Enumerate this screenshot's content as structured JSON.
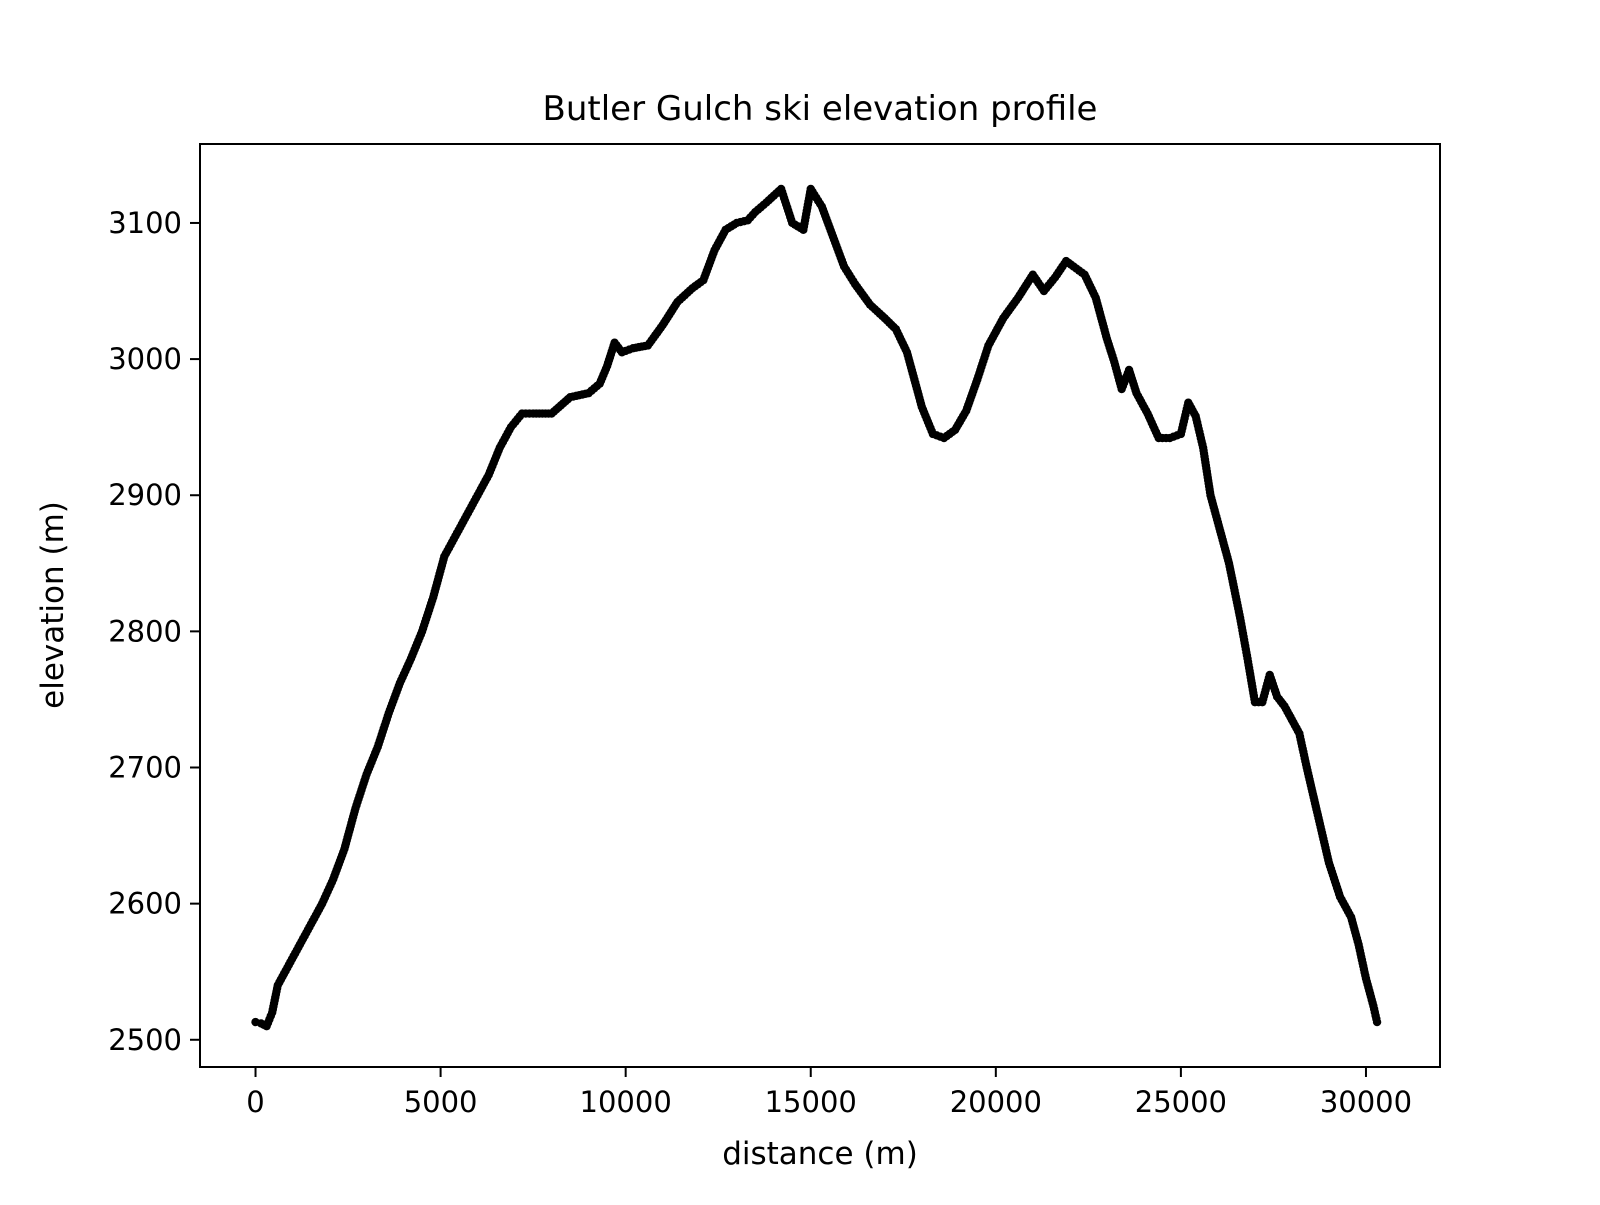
{
  "chart_data": {
    "type": "scatter",
    "title": "Butler Gulch ski elevation profile",
    "xlabel": "distance (m)",
    "ylabel": "elevation (m)",
    "xlim": [
      -1500,
      32000
    ],
    "ylim": [
      2480,
      3158
    ],
    "xticks": [
      0,
      5000,
      10000,
      15000,
      20000,
      25000,
      30000
    ],
    "yticks": [
      2500,
      2600,
      2700,
      2800,
      2900,
      3000,
      3100
    ],
    "grid": false,
    "legend": "none",
    "marker_color": "#000000",
    "series": [
      {
        "points": [
          [
            0,
            2513
          ],
          [
            150,
            2512
          ],
          [
            300,
            2510
          ],
          [
            450,
            2520
          ],
          [
            600,
            2540
          ],
          [
            900,
            2555
          ],
          [
            1200,
            2570
          ],
          [
            1500,
            2585
          ],
          [
            1800,
            2600
          ],
          [
            2100,
            2618
          ],
          [
            2400,
            2640
          ],
          [
            2700,
            2670
          ],
          [
            3000,
            2695
          ],
          [
            3300,
            2715
          ],
          [
            3600,
            2740
          ],
          [
            3900,
            2762
          ],
          [
            4200,
            2780
          ],
          [
            4500,
            2800
          ],
          [
            4800,
            2825
          ],
          [
            5100,
            2855
          ],
          [
            5400,
            2870
          ],
          [
            5700,
            2885
          ],
          [
            6000,
            2900
          ],
          [
            6300,
            2915
          ],
          [
            6600,
            2935
          ],
          [
            6900,
            2950
          ],
          [
            7200,
            2960
          ],
          [
            7500,
            2960
          ],
          [
            8000,
            2960
          ],
          [
            8500,
            2972
          ],
          [
            9000,
            2975
          ],
          [
            9300,
            2982
          ],
          [
            9500,
            2995
          ],
          [
            9700,
            3012
          ],
          [
            9900,
            3005
          ],
          [
            10200,
            3008
          ],
          [
            10600,
            3010
          ],
          [
            11000,
            3025
          ],
          [
            11400,
            3042
          ],
          [
            11800,
            3052
          ],
          [
            12100,
            3058
          ],
          [
            12400,
            3080
          ],
          [
            12700,
            3095
          ],
          [
            13000,
            3100
          ],
          [
            13300,
            3102
          ],
          [
            13500,
            3108
          ],
          [
            13800,
            3115
          ],
          [
            14200,
            3125
          ],
          [
            14500,
            3100
          ],
          [
            14800,
            3095
          ],
          [
            15000,
            3125
          ],
          [
            15300,
            3112
          ],
          [
            15600,
            3090
          ],
          [
            15900,
            3068
          ],
          [
            16200,
            3055
          ],
          [
            16600,
            3040
          ],
          [
            17000,
            3030
          ],
          [
            17300,
            3022
          ],
          [
            17600,
            3005
          ],
          [
            17800,
            2985
          ],
          [
            18000,
            2965
          ],
          [
            18300,
            2945
          ],
          [
            18600,
            2942
          ],
          [
            18900,
            2948
          ],
          [
            19200,
            2962
          ],
          [
            19500,
            2985
          ],
          [
            19800,
            3010
          ],
          [
            20200,
            3030
          ],
          [
            20600,
            3045
          ],
          [
            21000,
            3062
          ],
          [
            21300,
            3050
          ],
          [
            21600,
            3060
          ],
          [
            21900,
            3072
          ],
          [
            22100,
            3068
          ],
          [
            22400,
            3062
          ],
          [
            22700,
            3045
          ],
          [
            23000,
            3015
          ],
          [
            23200,
            2998
          ],
          [
            23400,
            2978
          ],
          [
            23600,
            2992
          ],
          [
            23800,
            2975
          ],
          [
            24100,
            2960
          ],
          [
            24400,
            2942
          ],
          [
            24700,
            2942
          ],
          [
            25000,
            2945
          ],
          [
            25200,
            2968
          ],
          [
            25400,
            2958
          ],
          [
            25600,
            2935
          ],
          [
            25800,
            2900
          ],
          [
            26000,
            2880
          ],
          [
            26300,
            2850
          ],
          [
            26600,
            2810
          ],
          [
            26800,
            2780
          ],
          [
            27000,
            2748
          ],
          [
            27200,
            2748
          ],
          [
            27400,
            2768
          ],
          [
            27600,
            2752
          ],
          [
            27800,
            2745
          ],
          [
            28000,
            2735
          ],
          [
            28200,
            2725
          ],
          [
            28400,
            2700
          ],
          [
            28700,
            2665
          ],
          [
            29000,
            2630
          ],
          [
            29300,
            2605
          ],
          [
            29600,
            2590
          ],
          [
            29800,
            2570
          ],
          [
            30000,
            2545
          ],
          [
            30200,
            2525
          ],
          [
            30300,
            2513
          ]
        ]
      }
    ]
  }
}
